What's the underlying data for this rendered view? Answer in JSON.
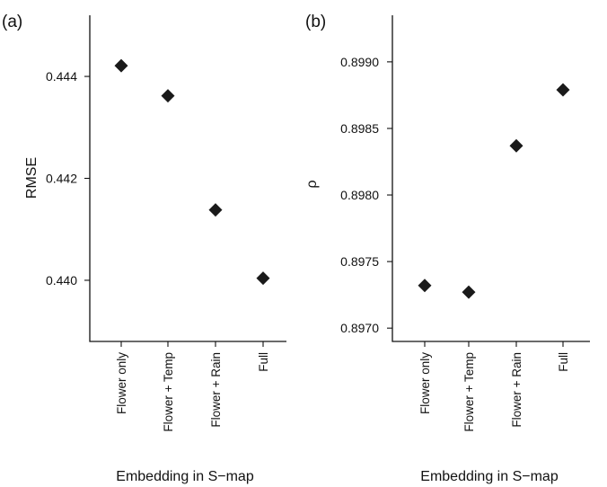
{
  "figure": {
    "panels": [
      "(a)",
      "(b)"
    ]
  },
  "chart_data": [
    {
      "type": "scatter",
      "panel_label": "(a)",
      "title": "",
      "xlabel": "Embedding in S−map",
      "ylabel": "RMSE",
      "categories": [
        "Flower only",
        "Flower + Temp",
        "Flower + Rain",
        "Full"
      ],
      "values": [
        0.44421,
        0.44362,
        0.44138,
        0.44004
      ],
      "ylim": [
        0.4388,
        0.4452
      ],
      "yticks": [
        0.44,
        0.442,
        0.444
      ],
      "ytick_labels": [
        "0.440",
        "0.442",
        "0.444"
      ],
      "marker": "diamond",
      "marker_color": "#1a1a1a",
      "grid": false,
      "legend": "none"
    },
    {
      "type": "scatter",
      "panel_label": "(b)",
      "title": "",
      "xlabel": "Embedding in S−map",
      "ylabel": "ρ",
      "categories": [
        "Flower only",
        "Flower + Temp",
        "Flower + Rain",
        "Full"
      ],
      "values": [
        0.89732,
        0.89727,
        0.89837,
        0.89879
      ],
      "ylim": [
        0.8969,
        0.89935
      ],
      "yticks": [
        0.897,
        0.8975,
        0.898,
        0.8985,
        0.899
      ],
      "ytick_labels": [
        "0.8970",
        "0.8975",
        "0.8980",
        "0.8985",
        "0.8990"
      ],
      "marker": "diamond",
      "marker_color": "#1a1a1a",
      "grid": false,
      "legend": "none"
    }
  ]
}
